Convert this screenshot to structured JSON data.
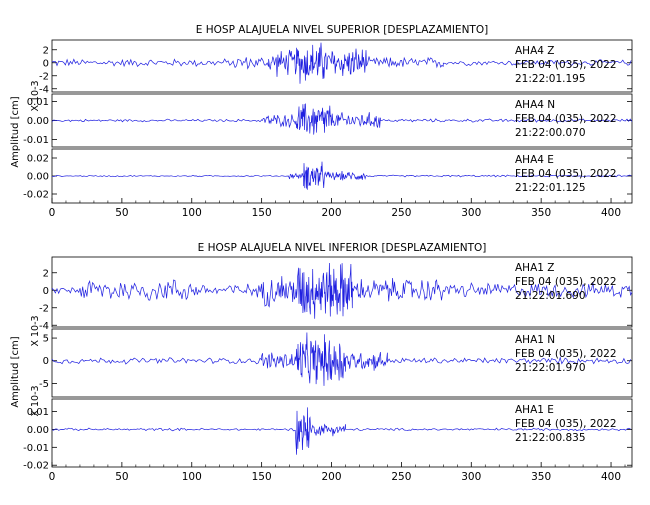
{
  "chart_data": [
    {
      "type": "line",
      "title": "E HOSP ALAJUELA NIVEL SUPERIOR [DESPLAZAMIENTO]",
      "ylabel": "Amplitud [cm]",
      "xlim": [
        0,
        415
      ],
      "x_ticks": [
        "0",
        "50",
        "100",
        "150",
        "200",
        "250",
        "300",
        "350",
        "400"
      ],
      "channels": [
        {
          "station": "AHA4 Z",
          "date": "FEB 04 (035), 2022",
          "time": "21:22:01.195",
          "scale_label": "X 10-3",
          "ylim": [
            -4.5,
            3.5
          ],
          "y_ticks": [
            "2",
            "0",
            "-2",
            "-4"
          ],
          "y_tick_values": [
            2,
            0,
            -2,
            -4
          ],
          "series": [
            {
              "from": 0,
              "to": 130,
              "amp": 0.7,
              "step": 1.2
            },
            {
              "from": 130,
              "to": 155,
              "amp": 1.2,
              "step": 1.0
            },
            {
              "from": 155,
              "to": 175,
              "amp": 2.4,
              "step": 0.6
            },
            {
              "from": 175,
              "to": 195,
              "amp": 3.8,
              "step": 0.35
            },
            {
              "from": 195,
              "to": 225,
              "amp": 2.8,
              "step": 0.45
            },
            {
              "from": 225,
              "to": 280,
              "amp": 1.0,
              "step": 0.9
            },
            {
              "from": 280,
              "to": 415,
              "amp": 0.5,
              "step": 1.2
            }
          ]
        },
        {
          "station": "AHA4 N",
          "date": "FEB 04 (035), 2022",
          "time": "21:22:00.070",
          "scale_label": "",
          "ylim": [
            -0.014,
            0.014
          ],
          "y_ticks": [
            "0.01",
            "0.00",
            "-0.01"
          ],
          "y_tick_values": [
            0.01,
            0.0,
            -0.01
          ],
          "series": [
            {
              "from": 0,
              "to": 150,
              "amp": 0.0008,
              "step": 1.2
            },
            {
              "from": 150,
              "to": 175,
              "amp": 0.004,
              "step": 0.6
            },
            {
              "from": 175,
              "to": 200,
              "amp": 0.011,
              "step": 0.35
            },
            {
              "from": 200,
              "to": 235,
              "amp": 0.005,
              "step": 0.5
            },
            {
              "from": 235,
              "to": 415,
              "amp": 0.001,
              "step": 1.2
            }
          ]
        },
        {
          "station": "AHA4 E",
          "date": "FEB 04 (035), 2022",
          "time": "21:22:01.125",
          "scale_label": "",
          "ylim": [
            -0.03,
            0.03
          ],
          "y_ticks": [
            "0.02",
            "0.00",
            "-0.02"
          ],
          "y_tick_values": [
            0.02,
            0.0,
            -0.02
          ],
          "series": [
            {
              "from": 0,
              "to": 170,
              "amp": 0.0008,
              "step": 1.2
            },
            {
              "from": 170,
              "to": 180,
              "amp": 0.004,
              "step": 0.5
            },
            {
              "from": 180,
              "to": 195,
              "amp": 0.018,
              "step": 0.3
            },
            {
              "from": 195,
              "to": 225,
              "amp": 0.006,
              "step": 0.5
            },
            {
              "from": 225,
              "to": 415,
              "amp": 0.0012,
              "step": 1.2
            }
          ]
        }
      ]
    },
    {
      "type": "line",
      "title": "E HOSP ALAJUELA NIVEL INFERIOR [DESPLAZAMIENTO]",
      "ylabel": "Amplitud [cm]",
      "xlim": [
        0,
        415
      ],
      "x_ticks": [
        "0",
        "50",
        "100",
        "150",
        "200",
        "250",
        "300",
        "350",
        "400"
      ],
      "channels": [
        {
          "station": "AHA1 Z",
          "date": "FEB 04 (035), 2022",
          "time": "21:22:01.690",
          "scale_label": "X 10-3",
          "ylim": [
            -4.2,
            3.8
          ],
          "y_ticks": [
            "2",
            "0",
            "-2",
            "-4"
          ],
          "y_tick_values": [
            2,
            0,
            -2,
            -4
          ],
          "series": [
            {
              "from": 0,
              "to": 20,
              "amp": 0.5,
              "step": 1.2
            },
            {
              "from": 20,
              "to": 100,
              "amp": 1.6,
              "step": 1.0
            },
            {
              "from": 100,
              "to": 150,
              "amp": 0.9,
              "step": 1.0
            },
            {
              "from": 150,
              "to": 175,
              "amp": 2.2,
              "step": 0.6
            },
            {
              "from": 175,
              "to": 215,
              "amp": 3.8,
              "step": 0.35
            },
            {
              "from": 215,
              "to": 280,
              "amp": 1.6,
              "step": 0.7
            },
            {
              "from": 280,
              "to": 415,
              "amp": 1.0,
              "step": 1.0
            }
          ]
        },
        {
          "station": "AHA1 N",
          "date": "FEB 04 (035), 2022",
          "time": "21:22:01.970",
          "scale_label": "X 10-3",
          "ylim": [
            -8,
            7
          ],
          "y_ticks": [
            "5",
            "0",
            "-5"
          ],
          "y_tick_values": [
            5,
            0,
            -5
          ],
          "series": [
            {
              "from": 0,
              "to": 150,
              "amp": 0.8,
              "step": 1.2
            },
            {
              "from": 150,
              "to": 175,
              "amp": 2.5,
              "step": 0.6
            },
            {
              "from": 175,
              "to": 210,
              "amp": 6.5,
              "step": 0.35
            },
            {
              "from": 210,
              "to": 240,
              "amp": 2.5,
              "step": 0.5
            },
            {
              "from": 240,
              "to": 415,
              "amp": 0.8,
              "step": 1.2
            }
          ]
        },
        {
          "station": "AHA1 E",
          "date": "FEB 04 (035), 2022",
          "time": "21:22:00.835",
          "scale_label": "",
          "ylim": [
            -0.021,
            0.017
          ],
          "y_ticks": [
            "0.01",
            "0.00",
            "-0.01",
            "-0.02"
          ],
          "y_tick_values": [
            0.01,
            0.0,
            -0.01,
            -0.02
          ],
          "series": [
            {
              "from": 0,
              "to": 175,
              "amp": 0.0008,
              "step": 1.2
            },
            {
              "from": 175,
              "to": 185,
              "amp": 0.016,
              "step": 0.3
            },
            {
              "from": 185,
              "to": 210,
              "amp": 0.004,
              "step": 0.5
            },
            {
              "from": 210,
              "to": 415,
              "amp": 0.0008,
              "step": 1.2
            }
          ]
        }
      ]
    }
  ]
}
